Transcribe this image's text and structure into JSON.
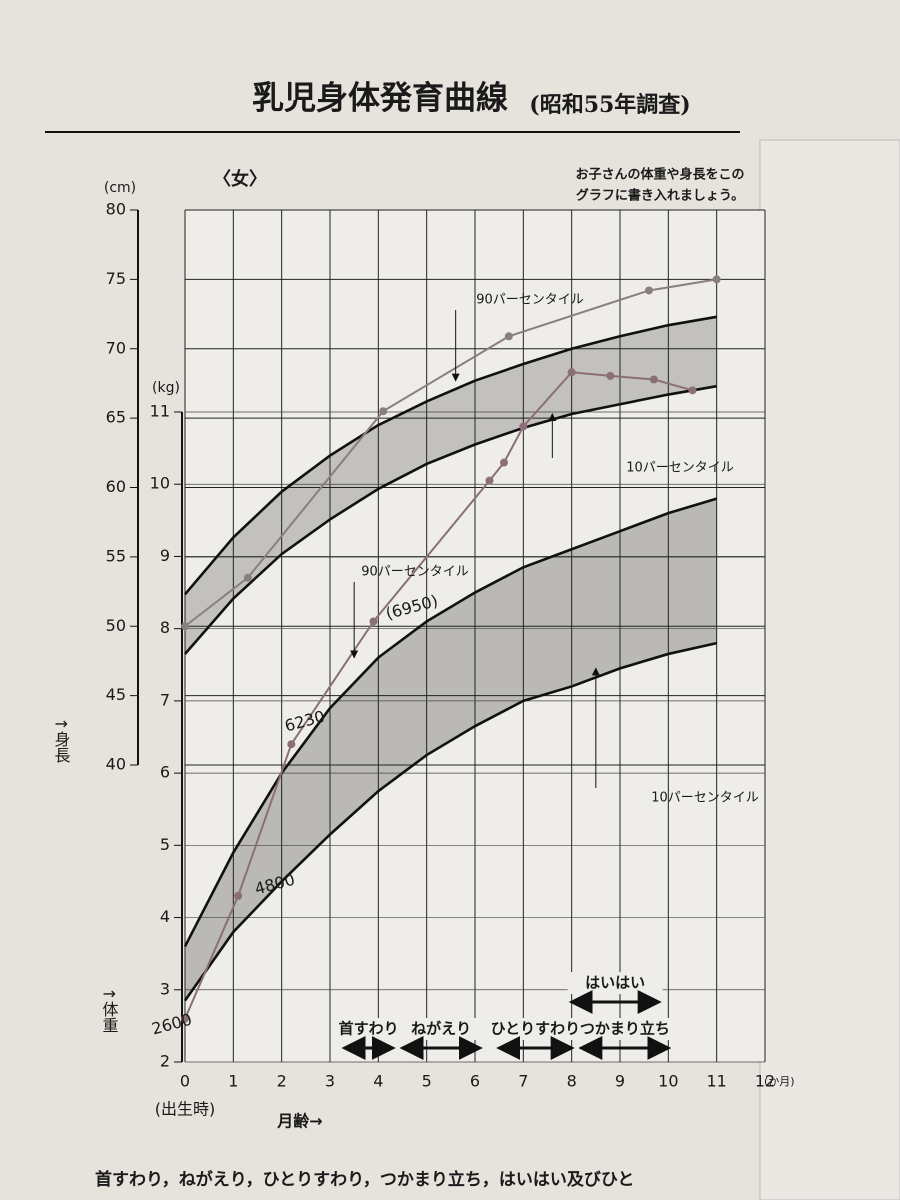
{
  "chart_data": {
    "type": "growth",
    "title": "乳児身体発育曲線",
    "subtitle": "(昭和55年調査)",
    "sex_label": "〈女〉",
    "note": [
      "お子さんの体重や身長をこの",
      "グラフに書き入れましょう。"
    ],
    "y_unit": "(cm)",
    "y2_unit": "(kg)",
    "y_axis_label": "↑身長",
    "y2_axis_label": "↑体重",
    "height_label": "身長",
    "weight_label": "体重",
    "x_start_label": "(出生時)",
    "x_axis_label": "月齢→",
    "x_unit": "(か月)",
    "xlim": [
      0,
      12
    ],
    "xticks": [
      0,
      1,
      2,
      3,
      4,
      5,
      6,
      7,
      8,
      9,
      10,
      11,
      12
    ],
    "ylim": [
      40,
      80
    ],
    "yticks": [
      40,
      45,
      50,
      55,
      60,
      65,
      70,
      75,
      80
    ],
    "y2lim": [
      2,
      11
    ],
    "y2ticks": [
      2,
      3,
      4,
      5,
      6,
      7,
      8,
      9,
      10,
      11
    ],
    "grid": true,
    "x": [
      0,
      1,
      2,
      3,
      4,
      5,
      6,
      7,
      8,
      9,
      10,
      11
    ],
    "series": [
      {
        "name": "90パーセンタイル",
        "axis": "y",
        "color": "#111111",
        "values": [
          52.3,
          56.4,
          59.7,
          62.3,
          64.5,
          66.2,
          67.7,
          68.9,
          70.0,
          70.9,
          71.7,
          72.3
        ]
      },
      {
        "name": "10パーセンタイル",
        "axis": "y",
        "color": "#111111",
        "values": [
          48.0,
          52.0,
          55.2,
          57.7,
          59.9,
          61.7,
          63.1,
          64.3,
          65.3,
          66.0,
          66.7,
          67.3
        ]
      },
      {
        "name": "90パーセンタイル",
        "axis": "y2",
        "color": "#111111",
        "values": [
          3.6,
          4.9,
          6.0,
          6.9,
          7.6,
          8.1,
          8.5,
          8.85,
          9.1,
          9.35,
          9.6,
          9.8
        ]
      },
      {
        "name": "10パーセンタイル",
        "axis": "y2",
        "color": "#111111",
        "values": [
          2.85,
          3.8,
          4.5,
          5.15,
          5.75,
          6.25,
          6.65,
          7.0,
          7.2,
          7.45,
          7.65,
          7.8
        ]
      },
      {
        "axis": "y",
        "color": "#8a7f7f",
        "x": [
          0,
          1.3,
          4.1,
          6.7,
          9.6,
          11
        ],
        "values": [
          50,
          53.5,
          65.5,
          70.9,
          74.2,
          75
        ]
      },
      {
        "axis": "y2",
        "color": "#8a6f78",
        "x": [
          0,
          1.1,
          2.2,
          3.9,
          6.3,
          6.6,
          7,
          8,
          8.8,
          9.7,
          10.5
        ],
        "values": [
          2.6,
          4.3,
          6.4,
          8.1,
          10.05,
          10.3,
          10.8,
          11.55,
          11.5,
          11.45,
          11.3
        ]
      }
    ],
    "annotations": [
      "6230",
      "(6950)",
      "4800",
      "2600"
    ],
    "milestones": [
      {
        "label": "首すわり",
        "range": [
          3.3,
          4.3
        ]
      },
      {
        "label": "ねがえり",
        "range": [
          4.5,
          6.1
        ]
      },
      {
        "label": "ひとりすわり",
        "range": [
          6.5,
          8.0
        ]
      },
      {
        "label": "つかまり立ち",
        "range": [
          8.2,
          10.0
        ]
      },
      {
        "label": "はいはい",
        "range": [
          8.0,
          9.8
        ]
      }
    ],
    "footer": "首すわり，ねがえり，ひとりすわり，つかまり立ち，はいはい及びひと"
  }
}
